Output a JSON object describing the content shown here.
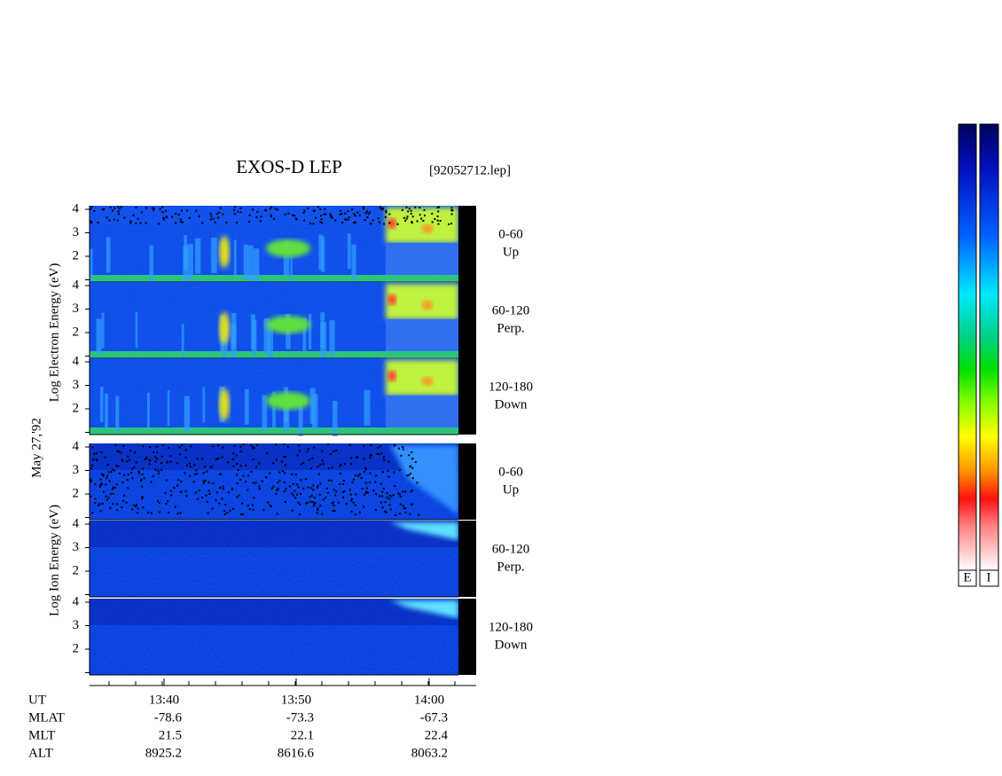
{
  "header": {
    "title": "EXOS-D LEP",
    "file": "[92052712.lep]"
  },
  "date": "May 27,'92",
  "electron": {
    "axis_label": "Log Electron Energy (eV)",
    "panels": [
      {
        "angle": "0-60",
        "direction": "Up"
      },
      {
        "angle": "60-120",
        "direction": "Perp."
      },
      {
        "angle": "120-180",
        "direction": "Down"
      }
    ],
    "energy_ticks": [
      4,
      3,
      2
    ]
  },
  "ion": {
    "axis_label": "Log Ion Energy (eV)",
    "panels": [
      {
        "angle": "0-60",
        "direction": "Up"
      },
      {
        "angle": "60-120",
        "direction": "Perp."
      },
      {
        "angle": "120-180",
        "direction": "Down"
      }
    ],
    "energy_ticks": [
      4,
      3,
      2
    ]
  },
  "time_axis": {
    "label": "UT",
    "ticks": [
      "13:40",
      "13:50",
      "14:00"
    ]
  },
  "orbit_rows": [
    {
      "label": "MLAT",
      "values": [
        -78.6,
        -73.3,
        -67.3
      ]
    },
    {
      "label": "MLT",
      "values": [
        21.5,
        22.1,
        22.4
      ]
    },
    {
      "label": "ALT",
      "values": [
        8925.2,
        8616.6,
        8063.2
      ]
    }
  ],
  "colorbars": [
    "E",
    "I"
  ]
}
